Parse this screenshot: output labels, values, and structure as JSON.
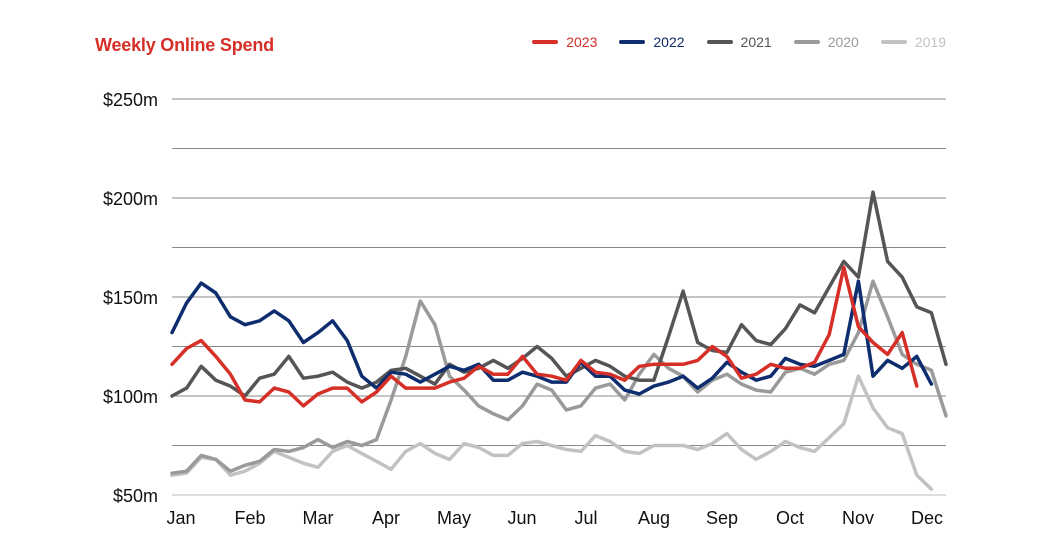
{
  "chart_data": {
    "type": "line",
    "title": "Weekly Online Spend",
    "xlabel": "",
    "ylabel": "",
    "ylim": [
      50,
      250
    ],
    "yticks": [
      50,
      100,
      150,
      200,
      250
    ],
    "ytick_labels": [
      "$50m",
      "$100m",
      "$150m",
      "$200m",
      "$250m"
    ],
    "xlim": [
      0,
      52
    ],
    "x_tick_labels": [
      {
        "label": "Jan",
        "x": 0
      },
      {
        "label": "Feb",
        "x": 5
      },
      {
        "label": "Mar",
        "x": 10
      },
      {
        "label": "Apr",
        "x": 15
      },
      {
        "label": "May",
        "x": 20
      },
      {
        "label": "Jun",
        "x": 25
      },
      {
        "label": "Jul",
        "x": 29.7
      },
      {
        "label": "Aug",
        "x": 35
      },
      {
        "label": "Sep",
        "x": 40
      },
      {
        "label": "Oct",
        "x": 45
      },
      {
        "label": "Nov",
        "x": 50
      },
      {
        "label": "Dec",
        "x": 55
      }
    ],
    "grid": true,
    "legend_position": "top-right",
    "series": [
      {
        "name": "2019",
        "color": "#c2c2c2",
        "values": [
          60,
          61,
          69,
          68,
          60,
          62,
          66,
          72,
          69,
          66,
          64,
          72,
          75,
          71,
          67,
          63,
          72,
          76,
          71,
          68,
          76,
          74,
          70,
          70,
          76,
          77,
          75,
          73,
          72,
          80,
          77,
          72,
          71,
          75,
          75,
          75,
          73,
          76,
          81,
          73,
          68,
          72,
          77,
          74,
          72,
          79,
          86,
          110,
          94,
          84,
          81,
          60,
          53
        ]
      },
      {
        "name": "2020",
        "color": "#9a9a9a",
        "values": [
          61,
          62,
          70,
          68,
          62,
          65,
          67,
          73,
          72,
          74,
          78,
          74,
          77,
          75,
          78,
          98,
          120,
          148,
          136,
          110,
          103,
          95,
          91,
          88,
          95,
          106,
          103,
          93,
          95,
          104,
          106,
          98,
          111,
          121,
          114,
          110,
          102,
          108,
          111,
          106,
          103,
          102,
          112,
          114,
          111,
          116,
          118,
          132,
          158,
          140,
          121,
          116,
          113,
          90
        ]
      },
      {
        "name": "2021",
        "color": "#555555",
        "values": [
          100,
          104,
          115,
          108,
          105,
          100,
          109,
          111,
          120,
          109,
          110,
          112,
          107,
          104,
          107,
          113,
          114,
          110,
          106,
          116,
          112,
          114,
          118,
          114,
          119,
          125,
          119,
          110,
          114,
          118,
          115,
          110,
          108,
          108,
          130,
          153,
          127,
          123,
          122,
          136,
          128,
          126,
          134,
          146,
          142,
          155,
          168,
          160,
          203,
          168,
          160,
          145,
          142,
          116
        ]
      },
      {
        "name": "2022",
        "color": "#0e2d6e",
        "values": [
          132,
          147,
          157,
          152,
          140,
          136,
          138,
          143,
          138,
          127,
          132,
          138,
          128,
          110,
          104,
          112,
          111,
          107,
          111,
          115,
          113,
          116,
          108,
          108,
          112,
          110,
          107,
          107,
          117,
          110,
          110,
          103,
          101,
          105,
          107,
          110,
          104,
          109,
          117,
          112,
          108,
          110,
          119,
          116,
          115,
          118,
          121,
          158,
          110,
          118,
          114,
          120,
          106
        ]
      },
      {
        "name": "2023",
        "color": "#d62f27",
        "values": [
          116,
          124,
          128,
          120,
          111,
          98,
          97,
          104,
          102,
          95,
          101,
          104,
          104,
          97,
          102,
          110,
          104,
          104,
          104,
          107,
          109,
          115,
          111,
          111,
          120,
          111,
          110,
          108,
          118,
          112,
          111,
          108,
          115,
          116,
          116,
          116,
          118,
          125,
          120,
          109,
          111,
          116,
          114,
          114,
          117,
          131,
          165,
          135,
          127,
          121,
          132,
          105
        ]
      }
    ]
  }
}
